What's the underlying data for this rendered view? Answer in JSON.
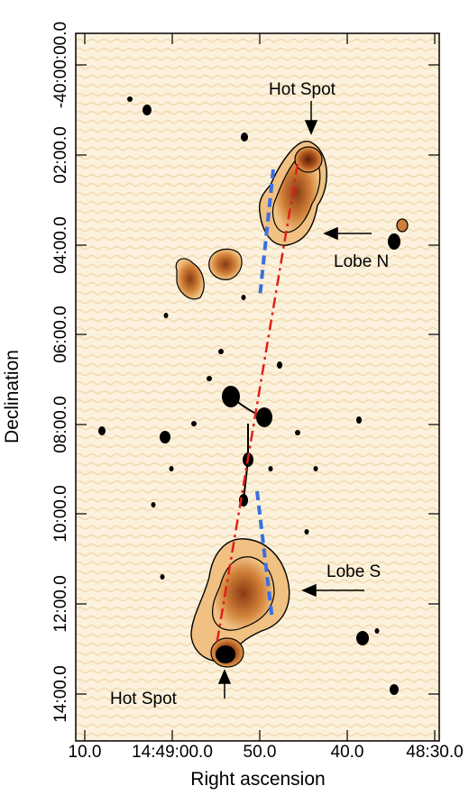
{
  "figure": {
    "xlabel": "Right ascension",
    "ylabel": "Declination",
    "x_ticks": [
      "10.0",
      "14:49:00.0",
      "50.0",
      "40.0",
      "48:30.0"
    ],
    "y_ticks": [
      "-40:00:00.0",
      "04:00.0",
      "06:00.0",
      "08:00.0",
      "10:00.0",
      "12:00.0",
      "14:00.0"
    ],
    "y_tick_02": "02:00.0",
    "annotations": {
      "hot_spot_top": "Hot Spot",
      "lobe_n": "Lobe N",
      "lobe_s": "Lobe S",
      "hot_spot_bottom": "Hot Spot"
    },
    "colors": {
      "background": "#fbf1dc",
      "emission_low": "#f3c98a",
      "emission_mid": "#d68a3c",
      "emission_high": "#8a3a12",
      "contour": "#000000",
      "red_axis": "#e0201a",
      "blue_axis": "#3a6fe0"
    }
  }
}
